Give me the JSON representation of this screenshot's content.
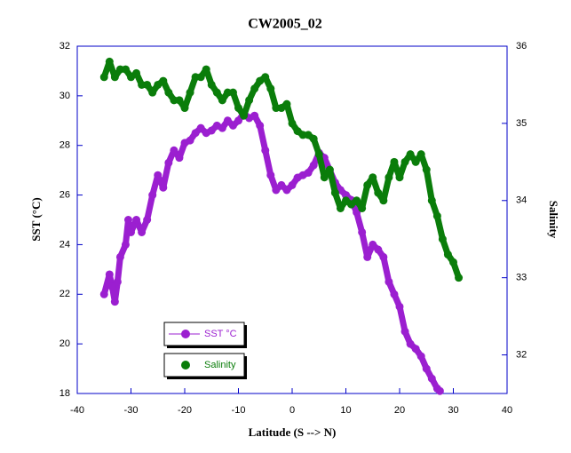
{
  "chart_data": {
    "type": "scatter",
    "title": "CW2005_02",
    "x_label": "Latitude (S --> N)",
    "y_label": "SST (°C)",
    "y2_label": "Salinity",
    "xlim": [
      -40,
      40
    ],
    "xticks": [
      -40,
      -30,
      -20,
      -10,
      0,
      10,
      20,
      30,
      40
    ],
    "ylim": [
      18,
      32
    ],
    "yticks": [
      18,
      20,
      22,
      24,
      26,
      28,
      30,
      32
    ],
    "y2lim": [
      31.5,
      36
    ],
    "y2ticks": [
      32,
      33,
      34,
      35,
      36
    ],
    "series": [
      {
        "name": "SST °C",
        "color": "#9b1fd0",
        "x": [
          -35,
          -34,
          -33.5,
          -33,
          -32.5,
          -32,
          -31,
          -30.5,
          -30,
          -29,
          -28,
          -27,
          -26,
          -25,
          -24,
          -23,
          -22,
          -21,
          -20,
          -19,
          -18,
          -17,
          -16,
          -15,
          -14,
          -13,
          -12,
          -11,
          -10,
          -9,
          -8,
          -7,
          -6,
          -5,
          -4,
          -3,
          -2,
          -1,
          0,
          1,
          2,
          3,
          4,
          5,
          6,
          7,
          8,
          9,
          10,
          11,
          12,
          13,
          14,
          15,
          16,
          17,
          18,
          19,
          20,
          21,
          22,
          23,
          24,
          25,
          26,
          27,
          27.5
        ],
        "values": [
          22,
          22.8,
          22.3,
          21.7,
          22.5,
          23.5,
          24,
          25,
          24.5,
          25,
          24.5,
          25,
          26,
          26.8,
          26.3,
          27.3,
          27.8,
          27.5,
          28.1,
          28.2,
          28.5,
          28.7,
          28.5,
          28.6,
          28.8,
          28.7,
          29,
          28.8,
          29,
          29.3,
          29.1,
          29.2,
          28.8,
          27.8,
          26.8,
          26.2,
          26.4,
          26.2,
          26.4,
          26.7,
          26.8,
          26.9,
          27.2,
          27.7,
          27.5,
          27,
          26.5,
          26.2,
          26,
          25.8,
          25.3,
          24.5,
          23.5,
          24,
          23.8,
          23.5,
          22.5,
          22,
          21.5,
          20.5,
          20,
          19.8,
          19.5,
          19,
          18.6,
          18.2,
          18.1
        ]
      },
      {
        "name": "Salinity",
        "color": "#0a7d0a",
        "axis": "y2",
        "x": [
          -35,
          -34,
          -33,
          -32,
          -31,
          -30,
          -29,
          -28,
          -27,
          -26,
          -25,
          -24,
          -23,
          -22,
          -21,
          -20,
          -19,
          -18,
          -17,
          -16,
          -15,
          -14,
          -13,
          -12,
          -11,
          -10,
          -9,
          -8,
          -7,
          -6,
          -5,
          -4,
          -3,
          -2,
          -1,
          0,
          1,
          2,
          3,
          4,
          5,
          6,
          7,
          8,
          9,
          10,
          11,
          12,
          13,
          14,
          15,
          16,
          17,
          18,
          19,
          20,
          21,
          22,
          23,
          24,
          25,
          26,
          27,
          28,
          29,
          30,
          31
        ],
        "values": [
          35.6,
          35.8,
          35.6,
          35.7,
          35.7,
          35.6,
          35.65,
          35.5,
          35.5,
          35.4,
          35.5,
          35.55,
          35.4,
          35.3,
          35.3,
          35.2,
          35.4,
          35.6,
          35.6,
          35.7,
          35.5,
          35.4,
          35.3,
          35.4,
          35.4,
          35.2,
          35.1,
          35.3,
          35.45,
          35.55,
          35.6,
          35.45,
          35.2,
          35.2,
          35.25,
          35.0,
          34.9,
          34.85,
          34.85,
          34.8,
          34.6,
          34.3,
          34.4,
          34.1,
          33.9,
          34.0,
          33.95,
          34.0,
          33.9,
          34.2,
          34.3,
          34.1,
          34.0,
          34.3,
          34.5,
          34.3,
          34.5,
          34.6,
          34.5,
          34.6,
          34.4,
          34.0,
          33.8,
          33.5,
          33.3,
          33.2,
          33.0
        ]
      }
    ]
  }
}
